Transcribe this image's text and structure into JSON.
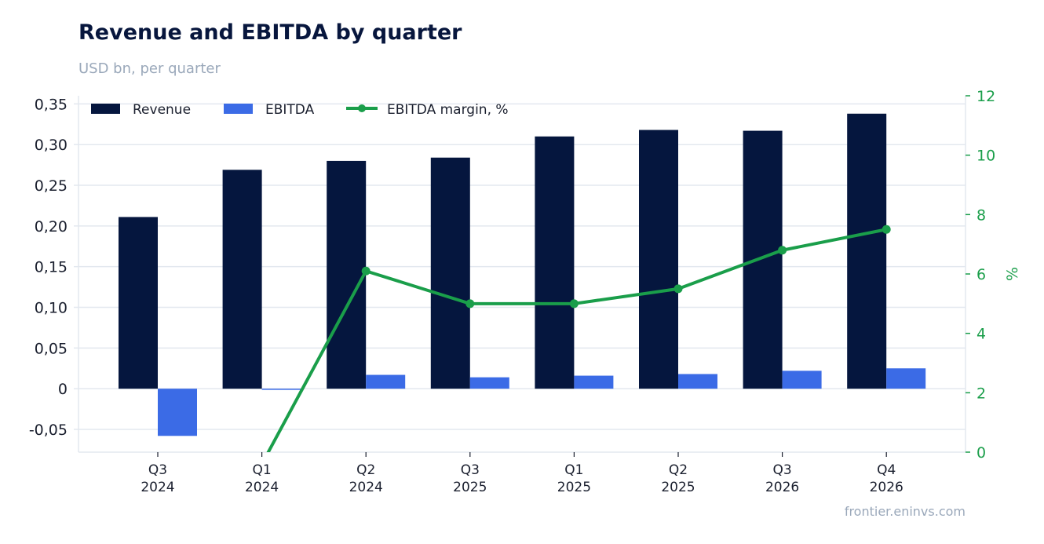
{
  "title": "Revenue and EBITDA by quarter",
  "subtitle": "USD bn, per quarter",
  "source": "frontier.eninvs.com",
  "colors": {
    "revenue": "#05163e",
    "ebitda": "#3b6be6",
    "margin": "#1a9e4a",
    "grid": "#e3e8ef",
    "axis_text": "#1a1f2e"
  },
  "chart_data": {
    "type": "bar",
    "categories": [
      [
        "Q3",
        "2024"
      ],
      [
        "Q1",
        "2024"
      ],
      [
        "Q2",
        "2024"
      ],
      [
        "Q3",
        "2025"
      ],
      [
        "Q1",
        "2025"
      ],
      [
        "Q2",
        "2025"
      ],
      [
        "Q3",
        "2026"
      ],
      [
        "Q4",
        "2026"
      ]
    ],
    "series": [
      {
        "name": "Revenue",
        "type": "bar",
        "axis": "left",
        "values": [
          0.211,
          0.269,
          0.28,
          0.284,
          0.31,
          0.318,
          0.317,
          0.338
        ]
      },
      {
        "name": "EBITDA",
        "type": "bar",
        "axis": "left",
        "values": [
          -0.058,
          -0.001,
          0.017,
          0.014,
          0.016,
          0.018,
          0.022,
          0.025
        ]
      },
      {
        "name": "EBITDA margin, %",
        "type": "line",
        "axis": "right",
        "values": [
          null,
          -0.4,
          6.1,
          5.0,
          5.0,
          5.5,
          6.8,
          7.5
        ]
      }
    ],
    "ylim": [
      -0.078,
      0.36
    ],
    "yticks": [
      -0.05,
      0,
      0.05,
      0.1,
      0.15,
      0.2,
      0.25,
      0.3,
      0.35
    ],
    "ytick_labels": [
      "-0,05",
      "0",
      "0,05",
      "0,10",
      "0,15",
      "0,20",
      "0,25",
      "0,30",
      "0,35"
    ],
    "y2lim": [
      0,
      12
    ],
    "y2ticks": [
      0,
      2,
      4,
      6,
      8,
      10,
      12
    ],
    "y2label": "%",
    "legend": "top-left",
    "grid": true
  }
}
